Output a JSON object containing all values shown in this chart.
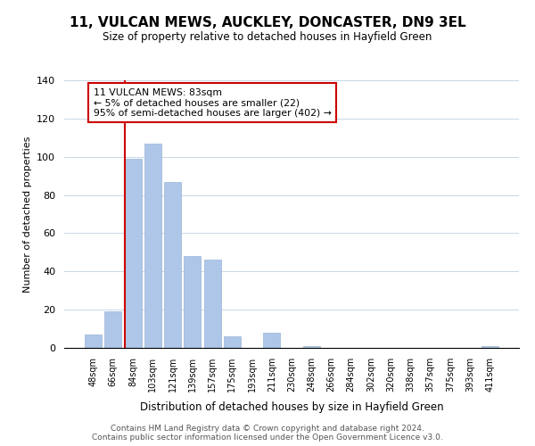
{
  "title": "11, VULCAN MEWS, AUCKLEY, DONCASTER, DN9 3EL",
  "subtitle": "Size of property relative to detached houses in Hayfield Green",
  "xlabel": "Distribution of detached houses by size in Hayfield Green",
  "ylabel": "Number of detached properties",
  "bar_labels": [
    "48sqm",
    "66sqm",
    "84sqm",
    "103sqm",
    "121sqm",
    "139sqm",
    "157sqm",
    "175sqm",
    "193sqm",
    "211sqm",
    "230sqm",
    "248sqm",
    "266sqm",
    "284sqm",
    "302sqm",
    "320sqm",
    "338sqm",
    "357sqm",
    "375sqm",
    "393sqm",
    "411sqm"
  ],
  "bar_values": [
    7,
    19,
    99,
    107,
    87,
    48,
    46,
    6,
    0,
    8,
    0,
    1,
    0,
    0,
    0,
    0,
    0,
    0,
    0,
    0,
    1
  ],
  "bar_color": "#aec6e8",
  "red_line_bar_index": 2,
  "annotation_title": "11 VULCAN MEWS: 83sqm",
  "annotation_line1": "← 5% of detached houses are smaller (22)",
  "annotation_line2": "95% of semi-detached houses are larger (402) →",
  "annotation_box_color": "#ffffff",
  "annotation_box_edgecolor": "#cc0000",
  "ylim": [
    0,
    140
  ],
  "yticks": [
    0,
    20,
    40,
    60,
    80,
    100,
    120,
    140
  ],
  "footer_line1": "Contains HM Land Registry data © Crown copyright and database right 2024.",
  "footer_line2": "Contains public sector information licensed under the Open Government Licence v3.0.",
  "background_color": "#ffffff",
  "grid_color": "#c8d8e8"
}
